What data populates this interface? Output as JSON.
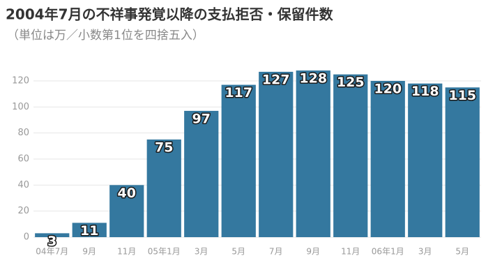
{
  "chart_data": {
    "type": "bar",
    "title": "2004年7月の不祥事発覚以降の支払拒否・保留件数",
    "subtitle": "（単位は万／小数第1位を四捨五入）",
    "categories": [
      "04年7月",
      "9月",
      "11月",
      "05年1月",
      "3月",
      "5月",
      "7月",
      "9月",
      "11月",
      "06年1月",
      "3月",
      "5月"
    ],
    "values": [
      3,
      11,
      40,
      75,
      97,
      117,
      127,
      128,
      125,
      120,
      118,
      115
    ],
    "color": "#34789f",
    "ylim": [
      0,
      130
    ],
    "yticks": [
      0,
      20,
      40,
      60,
      80,
      100,
      120
    ],
    "grid": true
  }
}
